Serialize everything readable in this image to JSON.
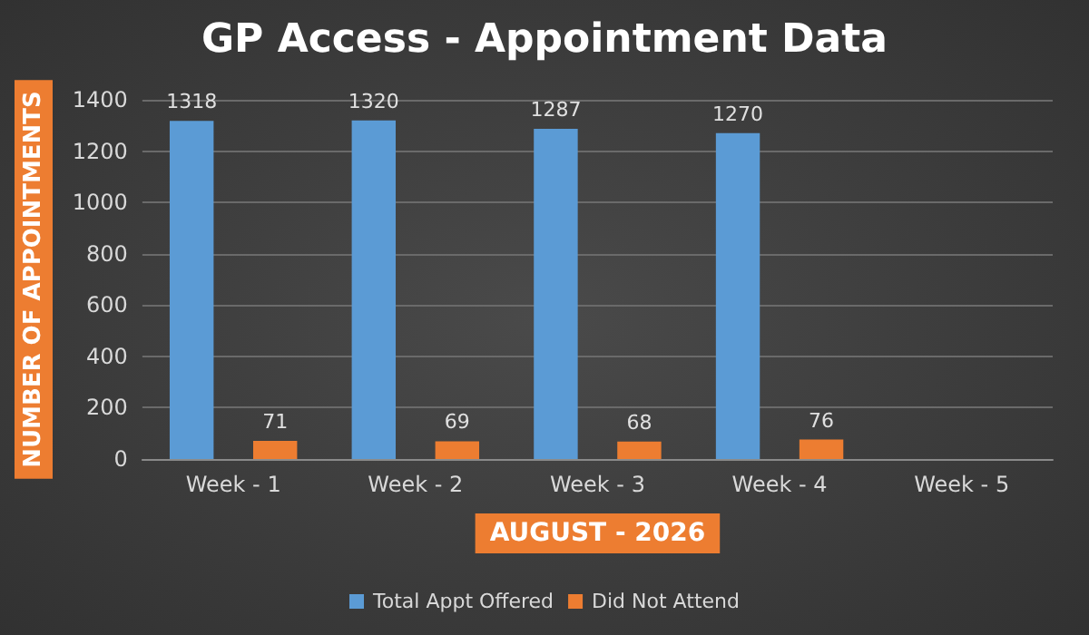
{
  "chart_data": {
    "type": "bar",
    "title": "GP Access - Appointment Data",
    "xlabel": "AUGUST - 2026",
    "ylabel": "NUMBER OF APPOINTMENTS",
    "categories": [
      "Week - 1",
      "Week - 2",
      "Week - 3",
      "Week - 4",
      "Week - 5"
    ],
    "series": [
      {
        "name": "Total Appt Offered",
        "color": "#5b9bd5",
        "values": [
          1318,
          1320,
          1287,
          1270,
          null
        ]
      },
      {
        "name": "Did Not Attend",
        "color": "#ed7d31",
        "values": [
          71,
          69,
          68,
          76,
          null
        ]
      }
    ],
    "ylim": [
      0,
      1400
    ],
    "yticks": [
      0,
      200,
      400,
      600,
      800,
      1000,
      1200,
      1400
    ],
    "grid": "y",
    "legend": "bottom",
    "data_labels": true
  }
}
